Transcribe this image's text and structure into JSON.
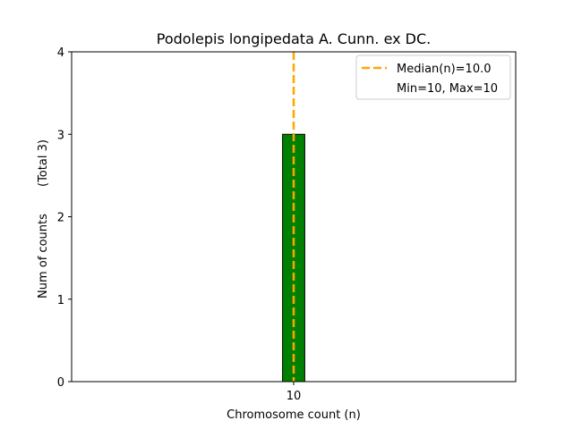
{
  "chart_data": {
    "type": "bar",
    "title": "Podolepis longipedata A. Cunn. ex DC.",
    "xlabel": "Chromosome count (n)",
    "ylabel": "Num of counts",
    "ylabel_note": "(Total 3)",
    "categories": [
      "10"
    ],
    "values": [
      3
    ],
    "xlim": [
      5,
      15
    ],
    "ylim": [
      0,
      4
    ],
    "yticks": [
      0,
      1,
      2,
      3,
      4
    ],
    "xticks": [
      10
    ],
    "bar_width": 0.5,
    "baseline_span": [
      5,
      11.75
    ],
    "median": 10.0,
    "legend": {
      "position": "top-right",
      "entries": [
        "Median(n)=10.0",
        "Min=10, Max=10"
      ]
    },
    "colors": {
      "bar": "#008000",
      "bar_edge": "#000000",
      "median_line": "#FFA500"
    },
    "grid": false
  }
}
